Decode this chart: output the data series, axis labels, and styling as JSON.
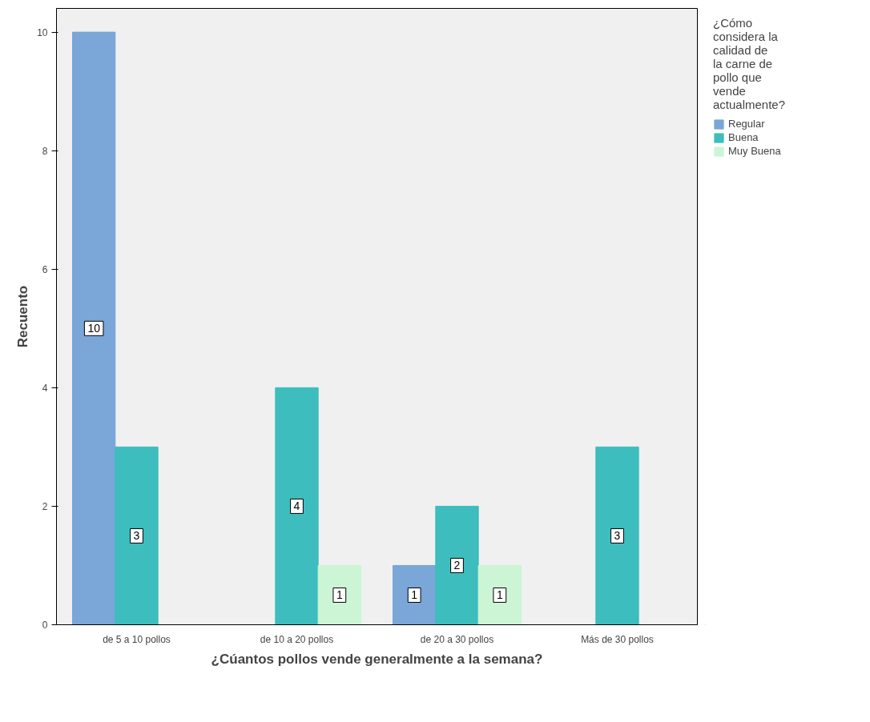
{
  "chart_data": {
    "type": "bar",
    "xlabel": "¿Cúantos pollos vende generalmente a la semana?",
    "ylabel": "Recuento",
    "legend_title": "¿Cómo considera la calidad de la carne de pollo que vende actualmente?",
    "categories": [
      "de 5 a 10 pollos",
      "de 10 a 20 pollos",
      "de 20 a 30 pollos",
      "Más de 30 pollos"
    ],
    "series": [
      {
        "name": "Regular",
        "color": "#7aa6d8",
        "values": [
          10,
          null,
          1,
          null
        ]
      },
      {
        "name": "Buena",
        "color": "#3dbdbd",
        "values": [
          3,
          4,
          2,
          3
        ]
      },
      {
        "name": "Muy Buena",
        "color": "#ccf5d5",
        "values": [
          null,
          1,
          1,
          null
        ]
      }
    ],
    "ylim": [
      0,
      10.4
    ],
    "yticks": [
      0,
      2,
      4,
      6,
      8,
      10
    ],
    "grid": false,
    "legend": "right",
    "data_labels": true
  }
}
